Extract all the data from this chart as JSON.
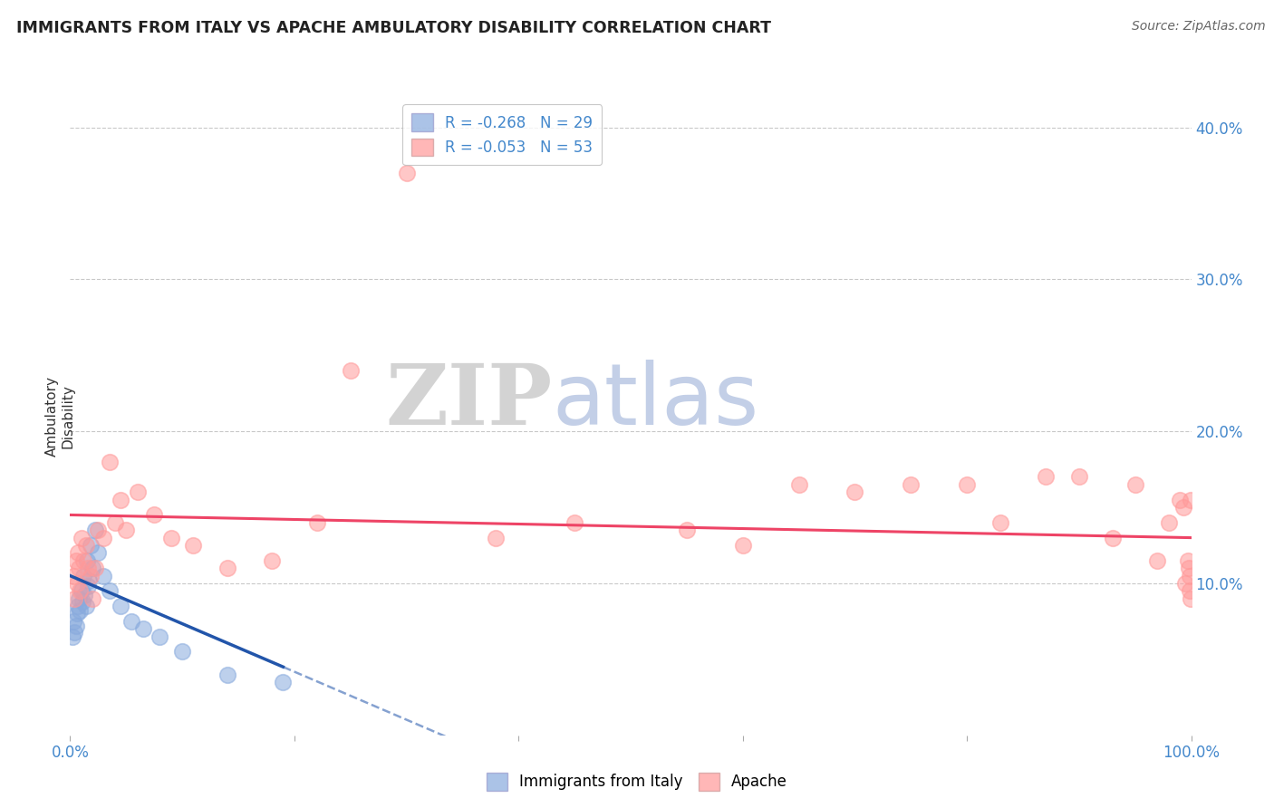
{
  "title": "IMMIGRANTS FROM ITALY VS APACHE AMBULATORY DISABILITY CORRELATION CHART",
  "source": "Source: ZipAtlas.com",
  "ylabel": "Ambulatory\nDisability",
  "watermark_zip": "ZIP",
  "watermark_atlas": "atlas",
  "legend_blue_r": "R = -0.268",
  "legend_blue_n": "N = 29",
  "legend_pink_r": "R = -0.053",
  "legend_pink_n": "N = 53",
  "xlim": [
    0,
    100
  ],
  "ylim": [
    0,
    42
  ],
  "blue_color": "#88AADD",
  "pink_color": "#FF9999",
  "trend_blue_color": "#2255AA",
  "trend_pink_color": "#EE4466",
  "grid_color": "#BBBBBB",
  "blue_x": [
    0.2,
    0.3,
    0.4,
    0.5,
    0.6,
    0.7,
    0.8,
    0.9,
    1.0,
    1.1,
    1.2,
    1.3,
    1.4,
    1.5,
    1.6,
    1.7,
    1.8,
    2.0,
    2.2,
    2.5,
    3.0,
    3.5,
    4.5,
    5.5,
    6.5,
    8.0,
    10.0,
    14.0,
    19.0
  ],
  "blue_y": [
    6.5,
    7.5,
    6.8,
    7.2,
    8.0,
    8.5,
    9.0,
    8.2,
    9.5,
    8.8,
    10.5,
    9.2,
    8.5,
    11.5,
    9.8,
    10.2,
    12.5,
    11.0,
    13.5,
    12.0,
    10.5,
    9.5,
    8.5,
    7.5,
    7.0,
    6.5,
    5.5,
    4.0,
    3.5
  ],
  "pink_x": [
    0.3,
    0.4,
    0.5,
    0.6,
    0.7,
    0.8,
    0.9,
    1.0,
    1.2,
    1.4,
    1.6,
    1.8,
    2.0,
    2.2,
    2.5,
    3.0,
    3.5,
    4.0,
    4.5,
    5.0,
    6.0,
    7.5,
    9.0,
    11.0,
    14.0,
    18.0,
    22.0,
    25.0,
    30.0,
    38.0,
    45.0,
    55.0,
    60.0,
    65.0,
    70.0,
    75.0,
    80.0,
    83.0,
    87.0,
    90.0,
    93.0,
    95.0,
    97.0,
    98.0,
    99.0,
    99.3,
    99.5,
    99.7,
    99.8,
    99.85,
    99.9,
    99.95,
    99.98
  ],
  "pink_y": [
    10.5,
    9.0,
    11.5,
    10.0,
    12.0,
    11.0,
    9.5,
    13.0,
    11.5,
    12.5,
    11.0,
    10.5,
    9.0,
    11.0,
    13.5,
    13.0,
    18.0,
    14.0,
    15.5,
    13.5,
    16.0,
    14.5,
    13.0,
    12.5,
    11.0,
    11.5,
    14.0,
    24.0,
    37.0,
    13.0,
    14.0,
    13.5,
    12.5,
    16.5,
    16.0,
    16.5,
    16.5,
    14.0,
    17.0,
    17.0,
    13.0,
    16.5,
    11.5,
    14.0,
    15.5,
    15.0,
    10.0,
    11.5,
    11.0,
    9.5,
    10.5,
    9.0,
    15.5
  ],
  "blue_trend_x0": 0,
  "blue_trend_y0": 10.5,
  "blue_trend_x1": 19,
  "blue_trend_y1": 4.5,
  "blue_solid_end": 19,
  "pink_trend_x0": 0,
  "pink_trend_y0": 14.5,
  "pink_trend_x1": 100,
  "pink_trend_y1": 13.0
}
